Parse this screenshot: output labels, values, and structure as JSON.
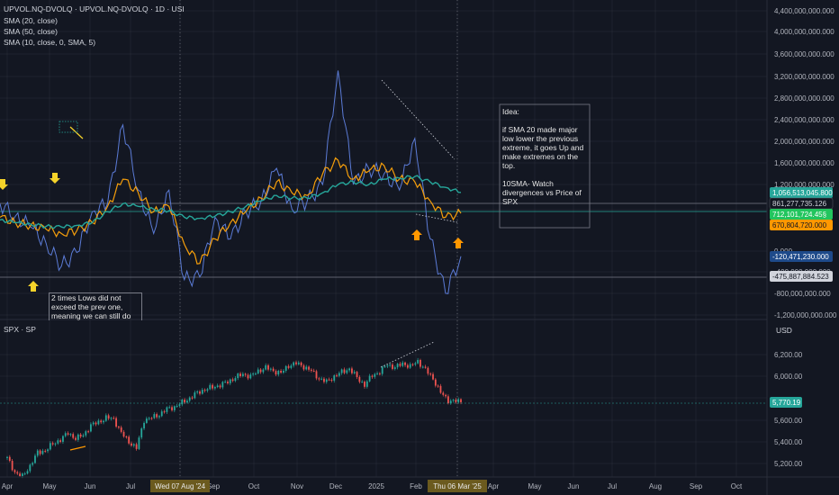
{
  "top_pane": {
    "title": "UPVOL.NQ-DVOLQ · UPVOL.NQ-DVOLQ · 1D · USI",
    "indicators": [
      "SMA (20, close)",
      "SMA (50, close)",
      "SMA (10, close, 0, SMA, 5)"
    ],
    "y_ticks": [
      "4,400,000,000.000",
      "4,000,000,000.000",
      "3,600,000,000.000",
      "3,200,000,000.000",
      "2,800,000,000.000",
      "2,400,000,000.000",
      "2,000,000,000.000",
      "1,600,000,000.000",
      "1,200,000,000.000",
      "800,000,000.000",
      "0.000",
      "-400,000,000.000",
      "-800,000,000.000",
      "-1,200,000,000.000"
    ],
    "price_labels": [
      {
        "text": "1,056,513,045.800",
        "bg": "#26a69a",
        "fg": "#ffffff"
      },
      {
        "text": "861,277,735.126",
        "bg": "#131722",
        "fg": "#d1d4dc"
      },
      {
        "text": "712,101,724.45§",
        "bg": "#22c55e",
        "fg": "#ffffff"
      },
      {
        "text": "670,804,720.000",
        "bg": "#ff9800",
        "fg": "#131722"
      },
      {
        "text": "-120,471,230.000",
        "bg": "#1e4a8a",
        "fg": "#ffffff"
      },
      {
        "text": "-475,887,884.523",
        "bg": "#d1d4dc",
        "fg": "#131722"
      }
    ],
    "idea_box": {
      "title": "Idea:",
      "para1": [
        "if SMA 20 made major",
        "low lower the previous",
        "extreme, it goes Up and",
        "make extremes on the",
        "top."
      ],
      "para2": [
        "10SMA- Watch",
        "divergences vs Price of",
        "SPX"
      ]
    },
    "lows_note": [
      "2 times Lows did not",
      "exceed the prev one,",
      "meaning we can still do"
    ]
  },
  "bottom_pane": {
    "title": "SPX · SP",
    "currency": "USD",
    "y_ticks": [
      "6,200.00",
      "6,000.00",
      "5,770.19",
      "5,600.00",
      "5,400.00",
      "5,200.00"
    ],
    "last_price": "5,770.19",
    "last_price_bg": "#26a69a"
  },
  "x_axis": {
    "labels": [
      "Apr",
      "May",
      "Jun",
      "Jul",
      "Sep",
      "Oct",
      "Nov",
      "Dec",
      "2025",
      "Feb",
      "Apr",
      "May",
      "Jun",
      "Jul",
      "Aug",
      "Sep",
      "Oct"
    ],
    "badges": [
      "Wed 07 Aug '24",
      "Thu 06 Mar '25"
    ],
    "badge_bg": "#6b5a1e"
  },
  "colors": {
    "background": "#131722",
    "grid": "#2a2e39",
    "series_blue": "#5b7bd6",
    "sma20_orange": "#f59e0b",
    "sma50_teal": "#26a69a",
    "sma10_gold": "#e0a030",
    "candle_up": "#26a69a",
    "candle_down": "#ef5350",
    "arrow_yellow": "#f5d32a",
    "arrow_orange": "#ff9800"
  },
  "chart_data": [
    {
      "type": "line",
      "title": "UPVOL.NQ-DVOLQ · UPVOL.NQ-DVOLQ · 1D · USI",
      "xlabel": "",
      "ylabel": "",
      "ylim": [
        -1200000000,
        4400000000
      ],
      "series": [
        {
          "name": "UPVOL.NQ-DVOLQ",
          "values": [
            850000000,
            620000000,
            420000000,
            120000000,
            -300000000,
            -50000000,
            700000000,
            850000000,
            2300000000,
            1100000000,
            300000000,
            1100000000,
            -550000000,
            -500000000,
            600000000,
            200000000,
            700000000,
            900000000,
            1500000000,
            750000000,
            900000000,
            1200000000,
            3300000000,
            1200000000,
            1500000000,
            1400000000,
            1100000000,
            2050000000,
            200000000,
            -800000000,
            -120471230
          ]
        },
        {
          "name": "SMA (20, close)",
          "values": [
            600000000,
            500000000,
            450000000,
            380000000,
            300000000,
            350000000,
            500000000,
            800000000,
            1300000000,
            1050000000,
            700000000,
            800000000,
            100000000,
            -250000000,
            200000000,
            500000000,
            700000000,
            950000000,
            1250000000,
            1050000000,
            1000000000,
            1400000000,
            1650000000,
            1300000000,
            1450000000,
            1550000000,
            1300000000,
            1250000000,
            900000000,
            600000000,
            670804720
          ]
        },
        {
          "name": "SMA (50, close)",
          "values": [
            550000000,
            500000000,
            470000000,
            430000000,
            420000000,
            450000000,
            500000000,
            700000000,
            850000000,
            800000000,
            750000000,
            720000000,
            600000000,
            580000000,
            620000000,
            700000000,
            800000000,
            900000000,
            1000000000,
            950000000,
            950000000,
            1050000000,
            1200000000,
            1250000000,
            1200000000,
            1300000000,
            1320000000,
            1350000000,
            1250000000,
            1150000000,
            1056513045.8
          ]
        }
      ]
    },
    {
      "type": "bar",
      "title": "SPX · SP",
      "xlabel": "",
      "ylabel": "USD",
      "ylim": [
        5100,
        6300
      ],
      "series": [
        {
          "name": "SPX · SP",
          "values": [
            5250,
            5120,
            5080,
            5180,
            5300,
            5320,
            5380,
            5420,
            5480,
            5430,
            5460,
            5550,
            5580,
            5620,
            5610,
            5480,
            5400,
            5340,
            5600,
            5620,
            5650,
            5700,
            5720,
            5760,
            5800,
            5850,
            5880,
            5900,
            5920,
            5950,
            5990,
            6020,
            6000,
            6050,
            6080,
            6050,
            6030,
            6100,
            6120,
            6090,
            6050,
            5980,
            5950,
            6000,
            6040,
            6070,
            5990,
            5920,
            6010,
            6040,
            6110,
            6080,
            6120,
            6090,
            6140,
            6060,
            5980,
            5850,
            5780,
            5770.19
          ]
        }
      ]
    }
  ]
}
